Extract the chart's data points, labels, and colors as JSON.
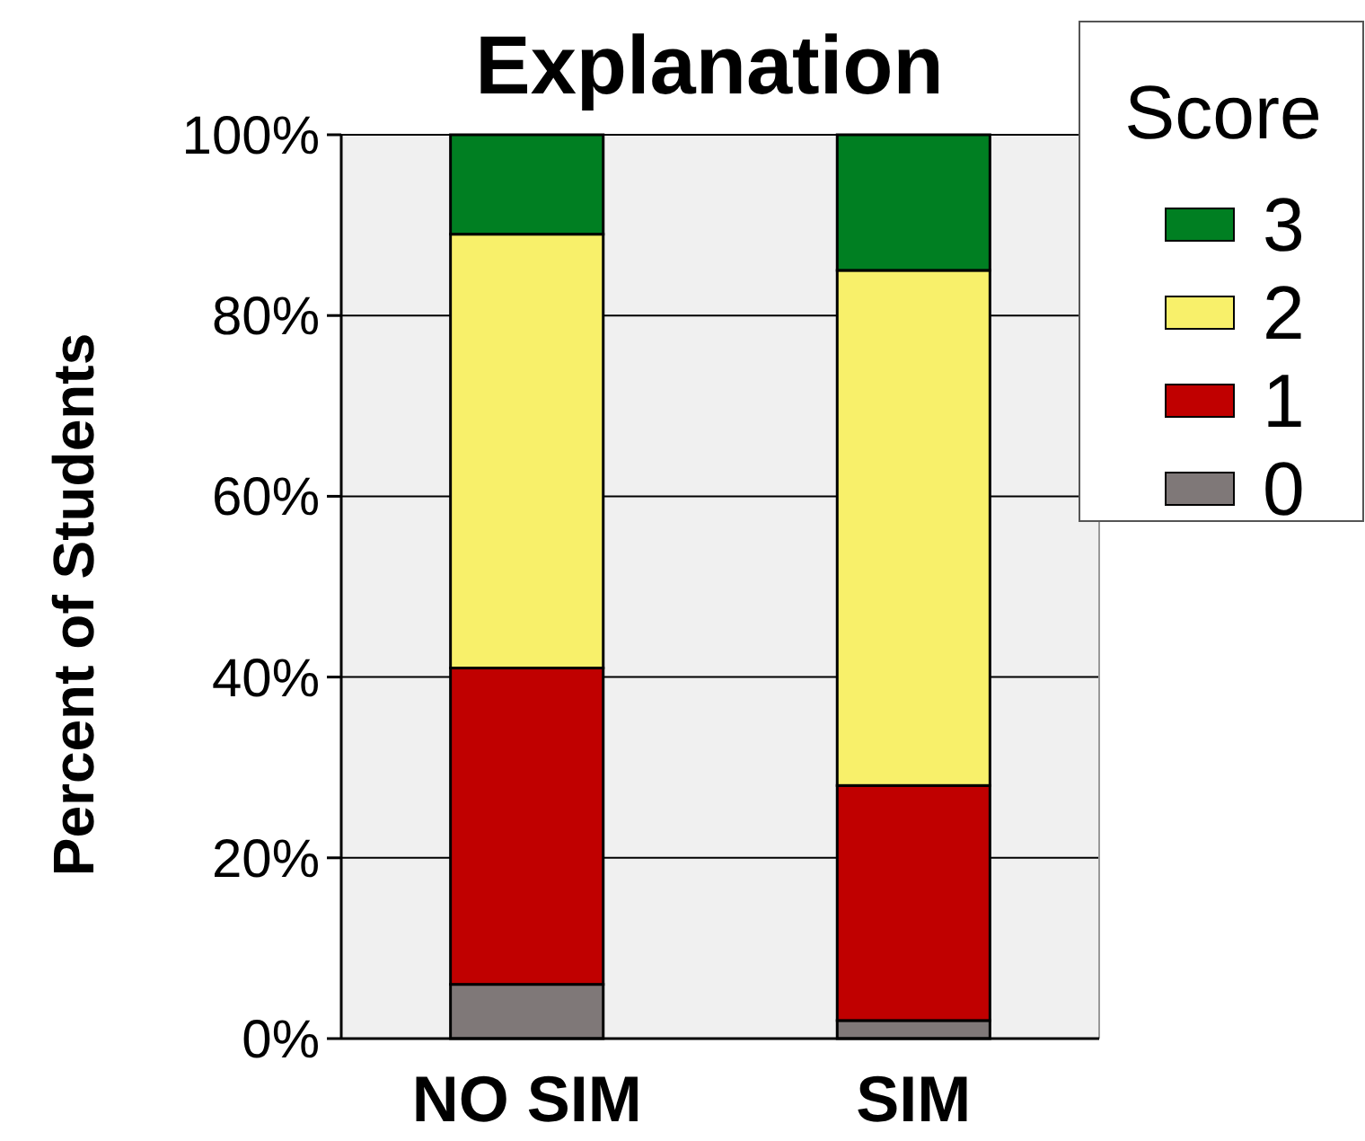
{
  "chart_data": {
    "type": "bar",
    "title": "Explanation",
    "ylabel": "Percent of Students",
    "legend_title": "Score",
    "categories": [
      "NO SIM",
      "SIM"
    ],
    "stacked": true,
    "series": [
      {
        "name": "0",
        "color": "#7f7878",
        "values": [
          6,
          2
        ]
      },
      {
        "name": "1",
        "color": "#c00000",
        "values": [
          35,
          26
        ]
      },
      {
        "name": "2",
        "color": "#f8f06a",
        "values": [
          48,
          57
        ]
      },
      {
        "name": "3",
        "color": "#007f22",
        "values": [
          11,
          15
        ]
      }
    ],
    "ylim": [
      0,
      100
    ],
    "yticks": [
      {
        "value": 0,
        "label": "0%"
      },
      {
        "value": 20,
        "label": "20%"
      },
      {
        "value": 40,
        "label": "40%"
      },
      {
        "value": 60,
        "label": "60%"
      },
      {
        "value": 80,
        "label": "80%"
      },
      {
        "value": 100,
        "label": "100%"
      }
    ],
    "grid": "y",
    "legend": "top right"
  }
}
